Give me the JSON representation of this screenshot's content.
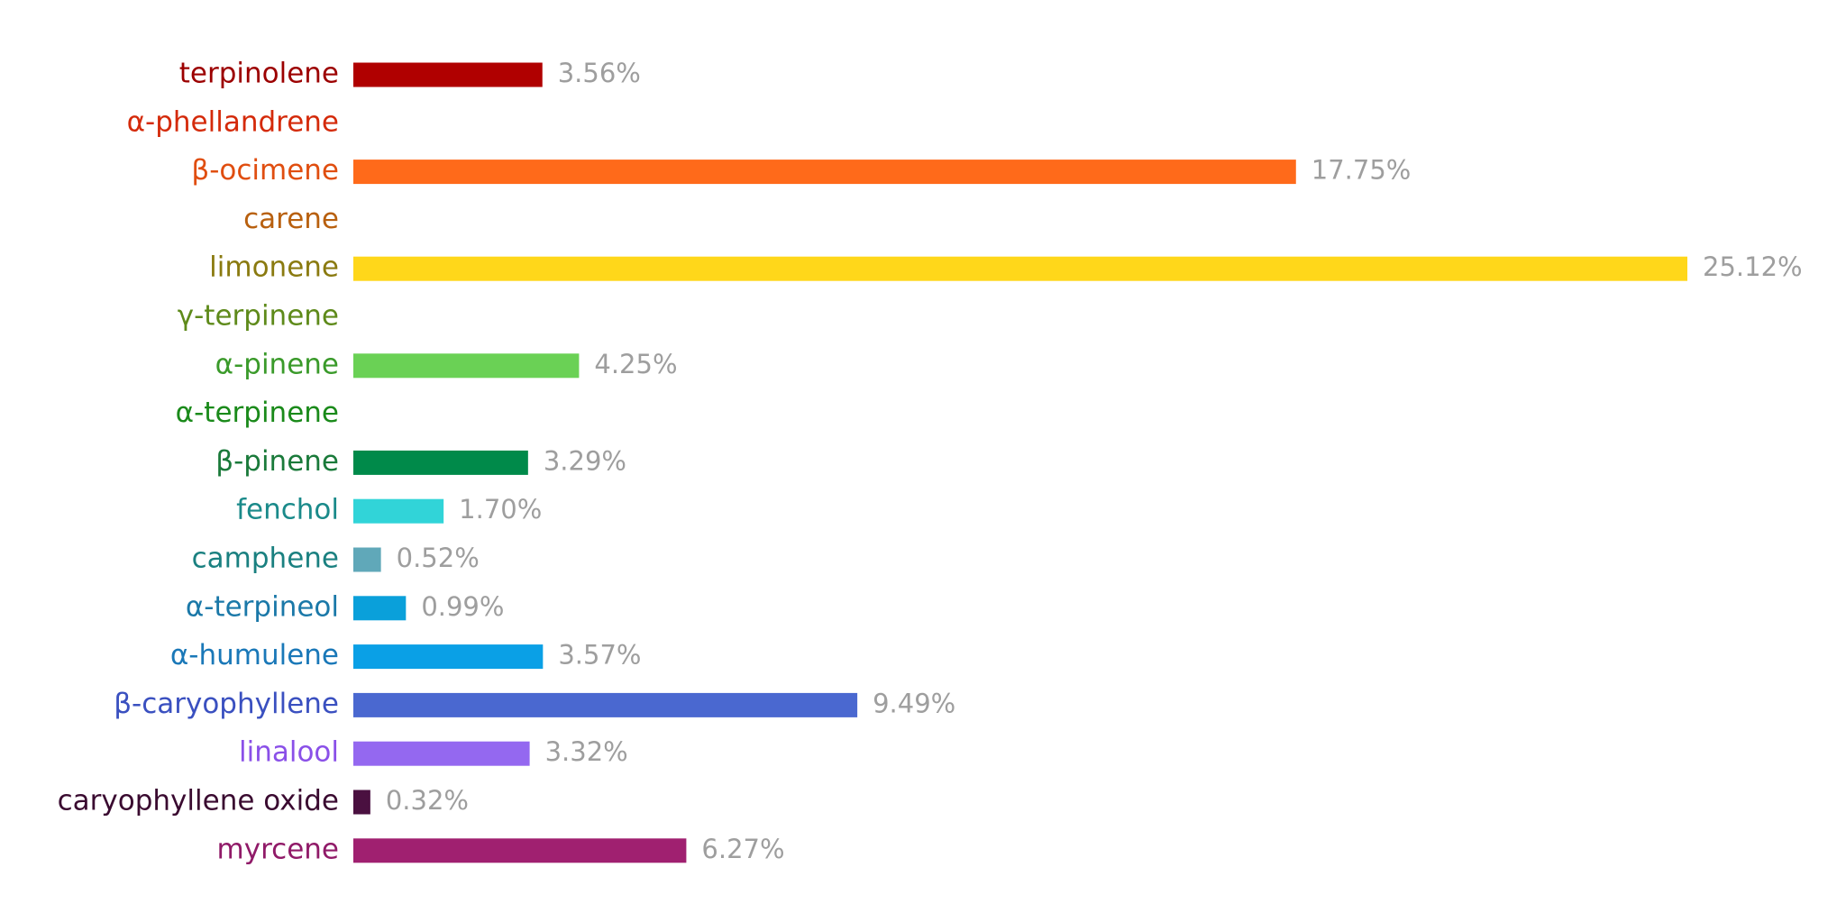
{
  "chart_data": {
    "type": "bar",
    "orientation": "horizontal",
    "categories": [
      "terpinolene",
      "α-phellandrene",
      "β-ocimene",
      "carene",
      "limonene",
      "γ-terpinene",
      "α-pinene",
      "α-terpinene",
      "β-pinene",
      "fenchol",
      "camphene",
      "α-terpineol",
      "α-humulene",
      "β-caryophyllene",
      "linalool",
      "caryophyllene oxide",
      "myrcene"
    ],
    "values": [
      3.56,
      0,
      17.75,
      0,
      25.12,
      0,
      4.25,
      0,
      3.29,
      1.7,
      0.52,
      0.99,
      3.57,
      9.49,
      3.32,
      0.32,
      6.27
    ],
    "value_labels": [
      "3.56%",
      null,
      "17.75%",
      null,
      "25.12%",
      null,
      "4.25%",
      null,
      "3.29%",
      "1.70%",
      "0.52%",
      "0.99%",
      "3.57%",
      "9.49%",
      "3.32%",
      "0.32%",
      "6.27%"
    ],
    "colors": [
      "#b00000",
      "#ec6f5c",
      "#ff6a1a",
      "#f07e62",
      "#ffd71a",
      "#a9d291",
      "#6ad155",
      "#5fb08e",
      "#008a4a",
      "#31d4d8",
      "#60a8b9",
      "#0aa0da",
      "#0aa0e6",
      "#4a68d0",
      "#9468f0",
      "#4a1040",
      "#a02070"
    ],
    "label_colors": [
      "#9c0000",
      "#d42a0a",
      "#e04e10",
      "#b8600f",
      "#8a7a10",
      "#5e8a1a",
      "#3a9a2a",
      "#1a8a1a",
      "#1a7a3a",
      "#1a8a8a",
      "#1a8080",
      "#1a78a8",
      "#1a78b8",
      "#3a50c0",
      "#8a50e8",
      "#3a0a30",
      "#901a68"
    ],
    "value_label_color": "#9e9e9e"
  }
}
